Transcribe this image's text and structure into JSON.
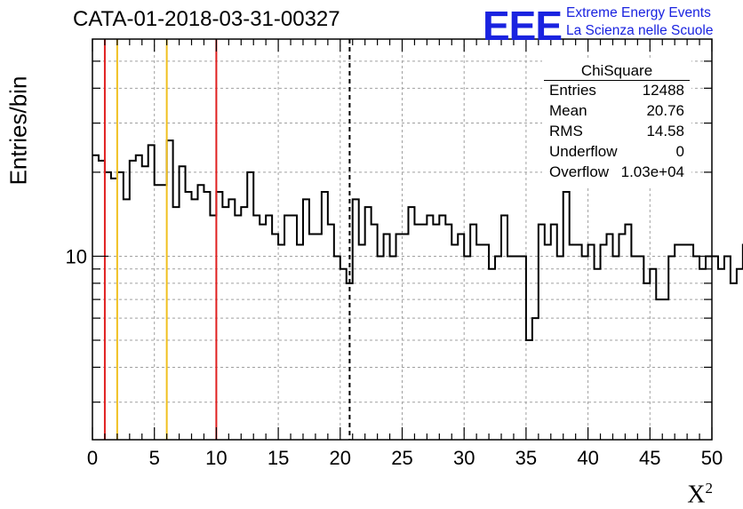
{
  "title": "CATA-01-2018-03-31-00327",
  "logo": {
    "mark": "EEE",
    "line1": "Extreme Energy Events",
    "line2": "La Scienza nelle Scuole"
  },
  "stats": {
    "title": "ChiSquare",
    "rows": [
      {
        "key": "Entries",
        "value": "12488"
      },
      {
        "key": "Mean",
        "value": "20.76"
      },
      {
        "key": "RMS",
        "value": "14.58"
      },
      {
        "key": "Underflow",
        "value": "0"
      },
      {
        "key": "Overflow",
        "value": "1.03e+04"
      }
    ]
  },
  "colors": {
    "red_line": "#e02020",
    "yellow_line": "#f0c020",
    "grid": "#a0a0a0"
  },
  "chart_data": {
    "type": "histogram",
    "ylabel": "Entries/bin",
    "xlabel": "X",
    "xlabel_superscript": "2",
    "xlim": [
      0,
      50
    ],
    "ylim": [
      2.2,
      60
    ],
    "yscale": "log",
    "grid": true,
    "bin_width": 0.5,
    "x_ticks": [
      0,
      5,
      10,
      15,
      20,
      25,
      30,
      35,
      40,
      45,
      50
    ],
    "x_tick_labels": [
      "0",
      "5",
      "10",
      "15",
      "20",
      "25",
      "30",
      "35",
      "40",
      "45",
      "50"
    ],
    "y_tick_labels": [
      {
        "value": 10,
        "label": "10"
      }
    ],
    "vertical_lines": [
      {
        "x": 1,
        "color": "red",
        "style": "solid"
      },
      {
        "x": 2,
        "color": "yellow",
        "style": "solid"
      },
      {
        "x": 6,
        "color": "yellow",
        "style": "solid"
      },
      {
        "x": 10,
        "color": "red",
        "style": "solid"
      },
      {
        "x": 20.76,
        "color": "black",
        "style": "dashed"
      }
    ],
    "values": [
      23,
      22,
      20,
      19,
      20,
      16,
      22,
      23,
      21,
      25,
      18,
      18,
      26,
      15,
      21,
      17,
      16,
      18,
      17,
      14,
      17,
      15,
      16,
      14,
      15,
      20,
      14,
      13,
      14,
      12,
      11,
      14,
      14,
      11,
      16,
      12,
      12,
      17,
      13,
      10,
      9,
      8,
      16,
      11,
      15,
      13,
      10,
      12,
      10,
      12,
      12,
      15,
      13,
      13,
      14,
      13,
      14,
      13,
      11,
      12,
      10,
      13,
      11,
      11,
      9,
      10,
      14,
      10,
      10,
      10,
      5,
      6,
      13,
      11,
      13,
      10,
      17,
      11,
      11,
      10,
      11,
      9,
      11,
      12,
      10,
      12,
      13,
      10,
      10,
      8,
      9,
      7,
      7,
      10,
      11,
      11,
      11,
      10,
      9,
      10,
      10,
      9,
      10,
      8,
      9,
      11,
      12,
      13,
      14,
      12,
      10,
      12,
      12,
      9,
      9,
      10,
      10,
      10,
      10,
      9,
      9,
      10,
      10,
      10,
      11,
      10,
      10,
      10,
      7,
      10
    ]
  }
}
